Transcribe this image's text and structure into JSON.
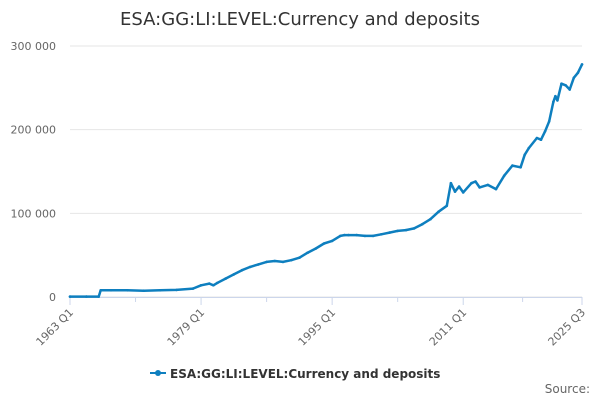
{
  "chart_data": {
    "type": "line",
    "title": "ESA:GG:LI:LEVEL:Currency and deposits",
    "xlabel": "",
    "ylabel": "",
    "ylim": [
      0,
      300000
    ],
    "yticks": [
      0,
      100000,
      200000,
      300000
    ],
    "ytick_labels": [
      "0",
      "100 000",
      "200 000",
      "300 000"
    ],
    "xticks": [
      "1963 Q1",
      "1979 Q1",
      "1995 Q1",
      "2011 Q1",
      "2025 Q3"
    ],
    "xlim": [
      1963.0,
      2025.5
    ],
    "grid": "horizontal",
    "legend_position": "bottom-center",
    "series": [
      {
        "name": "ESA:GG:LI:LEVEL:Currency and deposits",
        "color": "#0e7fbf",
        "points": [
          [
            1963.0,
            500
          ],
          [
            1965.0,
            500
          ],
          [
            1966.5,
            500
          ],
          [
            1966.75,
            8000
          ],
          [
            1968.0,
            8000
          ],
          [
            1970.0,
            8000
          ],
          [
            1972.0,
            7500
          ],
          [
            1974.0,
            8000
          ],
          [
            1976.0,
            8500
          ],
          [
            1978.0,
            10000
          ],
          [
            1979.0,
            14000
          ],
          [
            1980.0,
            16000
          ],
          [
            1980.5,
            14000
          ],
          [
            1981.0,
            17000
          ],
          [
            1982.0,
            22000
          ],
          [
            1983.0,
            27000
          ],
          [
            1984.0,
            32000
          ],
          [
            1985.0,
            36000
          ],
          [
            1986.0,
            39000
          ],
          [
            1987.0,
            42000
          ],
          [
            1988.0,
            43000
          ],
          [
            1989.0,
            42000
          ],
          [
            1990.0,
            44000
          ],
          [
            1991.0,
            47000
          ],
          [
            1992.0,
            53000
          ],
          [
            1993.0,
            58000
          ],
          [
            1994.0,
            64000
          ],
          [
            1995.0,
            67000
          ],
          [
            1996.0,
            73000
          ],
          [
            1996.5,
            74000
          ],
          [
            1997.0,
            74000
          ],
          [
            1998.0,
            74000
          ],
          [
            1999.0,
            73000
          ],
          [
            2000.0,
            73000
          ],
          [
            2001.0,
            75000
          ],
          [
            2002.0,
            77000
          ],
          [
            2003.0,
            79000
          ],
          [
            2004.0,
            80000
          ],
          [
            2005.0,
            82000
          ],
          [
            2006.0,
            87000
          ],
          [
            2007.0,
            93000
          ],
          [
            2008.0,
            102000
          ],
          [
            2009.0,
            109000
          ],
          [
            2009.5,
            136000
          ],
          [
            2010.0,
            126000
          ],
          [
            2010.5,
            132000
          ],
          [
            2011.0,
            125000
          ],
          [
            2012.0,
            136000
          ],
          [
            2012.5,
            138000
          ],
          [
            2013.0,
            131000
          ],
          [
            2014.0,
            134000
          ],
          [
            2015.0,
            129000
          ],
          [
            2016.0,
            145000
          ],
          [
            2017.0,
            157000
          ],
          [
            2018.0,
            155000
          ],
          [
            2018.5,
            170000
          ],
          [
            2019.0,
            178000
          ],
          [
            2020.0,
            190000
          ],
          [
            2020.5,
            188000
          ],
          [
            2021.0,
            198000
          ],
          [
            2021.5,
            210000
          ],
          [
            2022.0,
            233000
          ],
          [
            2022.25,
            240000
          ],
          [
            2022.5,
            235000
          ],
          [
            2023.0,
            255000
          ],
          [
            2023.5,
            253000
          ],
          [
            2024.0,
            248000
          ],
          [
            2024.5,
            262000
          ],
          [
            2025.0,
            268000
          ],
          [
            2025.5,
            278000
          ]
        ]
      }
    ],
    "credits": "Source:"
  }
}
